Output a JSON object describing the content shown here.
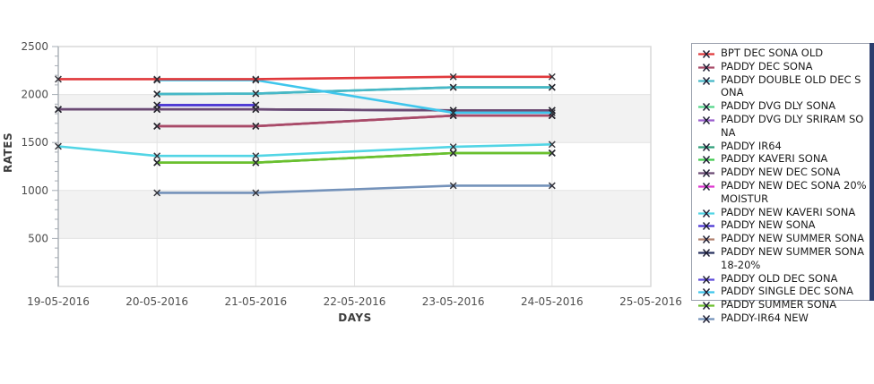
{
  "chart_data": {
    "type": "line",
    "title": "",
    "xlabel": "DAYS",
    "ylabel": "RATES",
    "x_categories": [
      "19-05-2016",
      "20-05-2016",
      "21-05-2016",
      "22-05-2016",
      "23-05-2016",
      "24-05-2016",
      "25-05-2016"
    ],
    "yticks": [
      500,
      1000,
      1500,
      2000,
      2500
    ],
    "ylim": [
      0,
      2500
    ],
    "grid": true,
    "legend_position": "right",
    "marker": "x",
    "bands": [
      [
        1500,
        2000
      ],
      [
        500,
        1000
      ]
    ],
    "series": [
      {
        "name": "BPT DEC SONA OLD",
        "color": "#e0393c",
        "points": [
          [
            0,
            2160
          ],
          [
            1,
            2160
          ],
          [
            2,
            2160
          ],
          [
            4,
            2185
          ],
          [
            5,
            2185
          ]
        ]
      },
      {
        "name": "PADDY DEC SONA",
        "color": "#a84a68",
        "points": [
          [
            1,
            1670
          ],
          [
            2,
            1670
          ],
          [
            4,
            1780
          ],
          [
            5,
            1780
          ]
        ]
      },
      {
        "name": "PADDY DOUBLE OLD DEC SONA",
        "color": "#46b8c8",
        "points": [
          [
            1,
            2005
          ],
          [
            2,
            2010
          ],
          [
            4,
            2075
          ],
          [
            5,
            2075
          ]
        ]
      },
      {
        "name": "PADDY DVG DLY SONA",
        "color": "#55d58a",
        "points": [
          [
            1,
            1290
          ],
          [
            2,
            1290
          ],
          [
            4,
            1390
          ],
          [
            5,
            1390
          ]
        ]
      },
      {
        "name": "PADDY DVG DLY SRIRAM SONA",
        "color": "#9a5fce",
        "points": [
          [
            0,
            1845
          ],
          [
            1,
            1845
          ],
          [
            2,
            1845
          ],
          [
            4,
            1835
          ],
          [
            5,
            1835
          ]
        ]
      },
      {
        "name": "PADDY IR64",
        "color": "#2f9e79",
        "points": [
          [
            1,
            2005
          ],
          [
            2,
            2010
          ],
          [
            4,
            2075
          ],
          [
            5,
            2075
          ]
        ]
      },
      {
        "name": "PADDY KAVERI SONA",
        "color": "#41c94f",
        "points": [
          [
            1,
            1290
          ],
          [
            2,
            1290
          ],
          [
            4,
            1390
          ],
          [
            5,
            1390
          ]
        ]
      },
      {
        "name": "PADDY NEW DEC SONA",
        "color": "#6b4a73",
        "points": [
          [
            0,
            1845
          ],
          [
            1,
            1845
          ],
          [
            2,
            1845
          ],
          [
            4,
            1835
          ],
          [
            5,
            1835
          ]
        ]
      },
      {
        "name": "PADDY NEW DEC SONA 20% MOISTUR",
        "color": "#dc36ce",
        "points": [
          [
            1,
            1670
          ],
          [
            2,
            1670
          ],
          [
            4,
            1780
          ],
          [
            5,
            1780
          ]
        ]
      },
      {
        "name": "PADDY NEW KAVERI SONA",
        "color": "#52d5e5",
        "points": [
          [
            0,
            1460
          ],
          [
            1,
            1360
          ],
          [
            2,
            1360
          ],
          [
            4,
            1455
          ],
          [
            5,
            1480
          ]
        ]
      },
      {
        "name": "PADDY NEW SONA",
        "color": "#4b36d3",
        "points": [
          [
            1,
            1890
          ],
          [
            2,
            1890
          ]
        ]
      },
      {
        "name": "PADDY NEW SUMMER SONA",
        "color": "#b2826f",
        "points": [
          [
            1,
            1670
          ],
          [
            2,
            1670
          ],
          [
            4,
            1780
          ],
          [
            5,
            1780
          ]
        ]
      },
      {
        "name": "PADDY NEW SUMMER SONA 18-20%",
        "color": "#28325f",
        "points": [
          [
            0,
            1845
          ],
          [
            1,
            1845
          ],
          [
            2,
            1845
          ],
          [
            4,
            1835
          ],
          [
            5,
            1835
          ]
        ]
      },
      {
        "name": "PADDY OLD DEC SONA",
        "color": "#5d4ada",
        "points": [
          [
            1,
            1890
          ],
          [
            2,
            1890
          ]
        ]
      },
      {
        "name": "PADDY SINGLE DEC SONA",
        "color": "#3fc6ec",
        "points": [
          [
            1,
            2150
          ],
          [
            2,
            2150
          ],
          [
            4,
            1810
          ],
          [
            5,
            1810
          ]
        ]
      },
      {
        "name": "PADDY SUMMER SONA",
        "color": "#6cbf2d",
        "points": [
          [
            1,
            1290
          ],
          [
            2,
            1290
          ],
          [
            4,
            1390
          ],
          [
            5,
            1390
          ]
        ]
      },
      {
        "name": "PADDY-IR64 NEW",
        "color": "#7492ba",
        "points": [
          [
            1,
            975
          ],
          [
            2,
            975
          ],
          [
            4,
            1050
          ],
          [
            5,
            1050
          ]
        ]
      }
    ],
    "draw_order": [
      3,
      4,
      5,
      6,
      8,
      11,
      12,
      13,
      16,
      15,
      9,
      1,
      10,
      7,
      2,
      14,
      0
    ]
  },
  "colors": {
    "plot_border": "#d9d9d9",
    "band_fill": "#f2f2f2",
    "gridline": "#e3e3e3",
    "axis_line": "#a6adb5",
    "tick_text": "#4e4e4e",
    "marker_stroke": "#26262e",
    "legend_border": "#9aa0ad",
    "legend_edge_strip": "#2c3e6e"
  }
}
